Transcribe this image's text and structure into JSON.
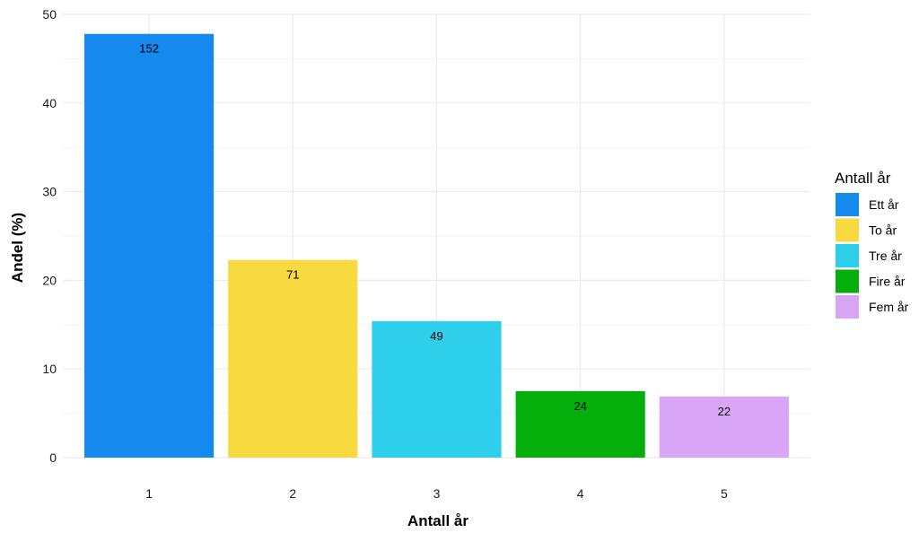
{
  "chart_data": {
    "type": "bar",
    "title": "",
    "xlabel": "Antall år",
    "ylabel": "Andel (%)",
    "categories": [
      "1",
      "2",
      "3",
      "4",
      "5"
    ],
    "values": [
      47.8,
      22.3,
      15.4,
      7.5,
      6.9
    ],
    "data_labels": [
      "152",
      "71",
      "49",
      "24",
      "22"
    ],
    "colors": [
      "#1589EE",
      "#F8D93F",
      "#2ECFEB",
      "#05AF0B",
      "#D8A5F7"
    ],
    "ylim": [
      0,
      50
    ],
    "yticks": [
      0,
      10,
      20,
      30,
      40,
      50
    ],
    "grid": true,
    "legend": {
      "title": "Antall år",
      "placement": "right",
      "items": [
        "Ett år",
        "To år",
        "Tre år",
        "Fire år",
        "Fem år"
      ]
    }
  }
}
